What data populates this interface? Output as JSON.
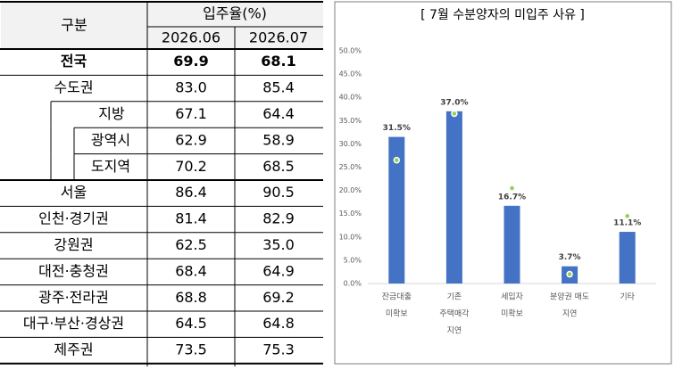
{
  "table": {
    "header": {
      "group": "구분",
      "rate": "입주율(%)",
      "periods": [
        "2026.06",
        "2026.07"
      ]
    },
    "rows": [
      {
        "name": "전국",
        "values": [
          "69.9",
          "68.1"
        ],
        "bold": true,
        "level": 0
      },
      {
        "name": "수도권",
        "values": [
          "83.0",
          "85.4"
        ],
        "level": 0
      },
      {
        "name": "지방",
        "values": [
          "67.1",
          "64.4"
        ],
        "level": 1
      },
      {
        "name": "광역시",
        "values": [
          "62.9",
          "58.9"
        ],
        "level": 2
      },
      {
        "name": "도지역",
        "values": [
          "70.2",
          "68.5"
        ],
        "level": 2
      },
      {
        "name": "서울",
        "values": [
          "86.4",
          "90.5"
        ],
        "level": 0
      },
      {
        "name": "인천·경기권",
        "values": [
          "81.4",
          "82.9"
        ],
        "level": 0
      },
      {
        "name": "강원권",
        "values": [
          "62.5",
          "35.0"
        ],
        "level": 0
      },
      {
        "name": "대전·충청권",
        "values": [
          "68.4",
          "64.9"
        ],
        "level": 0
      },
      {
        "name": "광주·전라권",
        "values": [
          "68.8",
          "69.2"
        ],
        "level": 0
      },
      {
        "name": "대구·부산·경상권",
        "values": [
          "64.5",
          "64.8"
        ],
        "level": 0
      },
      {
        "name": "제주권",
        "values": [
          "73.5",
          "75.3"
        ],
        "level": 0
      }
    ]
  },
  "chart_data": {
    "type": "bar",
    "title": "[ 7월 수분양자의 미입주 사유 ]",
    "categories": [
      [
        "잔금대출",
        "미확보"
      ],
      [
        "기존",
        "주택매각",
        "지연"
      ],
      [
        "세입자",
        "미확보"
      ],
      [
        "분양권 매도",
        "지연"
      ],
      [
        "기타"
      ]
    ],
    "series": [
      {
        "color": "#4472c4",
        "values": [
          31.5,
          37.0,
          16.7,
          3.7,
          11.1
        ],
        "value_labels": [
          "31.5%",
          "37.0%",
          "16.7%",
          "3.7%",
          "11.1%"
        ]
      },
      {
        "color": "#92d050",
        "marker": "circle",
        "values": [
          26.5,
          36.5,
          20.5,
          2.0,
          14.5
        ]
      }
    ],
    "ylim": [
      0,
      50
    ],
    "yticks": [
      {
        "value": 0,
        "label": "0.0%"
      },
      {
        "value": 5,
        "label": "5.0%"
      },
      {
        "value": 10,
        "label": "10.0%"
      },
      {
        "value": 15,
        "label": "15.0%"
      },
      {
        "value": 20,
        "label": "20.0%"
      },
      {
        "value": 25,
        "label": "25.0%"
      },
      {
        "value": 30,
        "label": "30.0%"
      },
      {
        "value": 35,
        "label": "35.0%"
      },
      {
        "value": 40,
        "label": "40.0%"
      },
      {
        "value": 45,
        "label": "45.0%"
      },
      {
        "value": 50,
        "label": "50.0%"
      }
    ],
    "grid": false
  }
}
